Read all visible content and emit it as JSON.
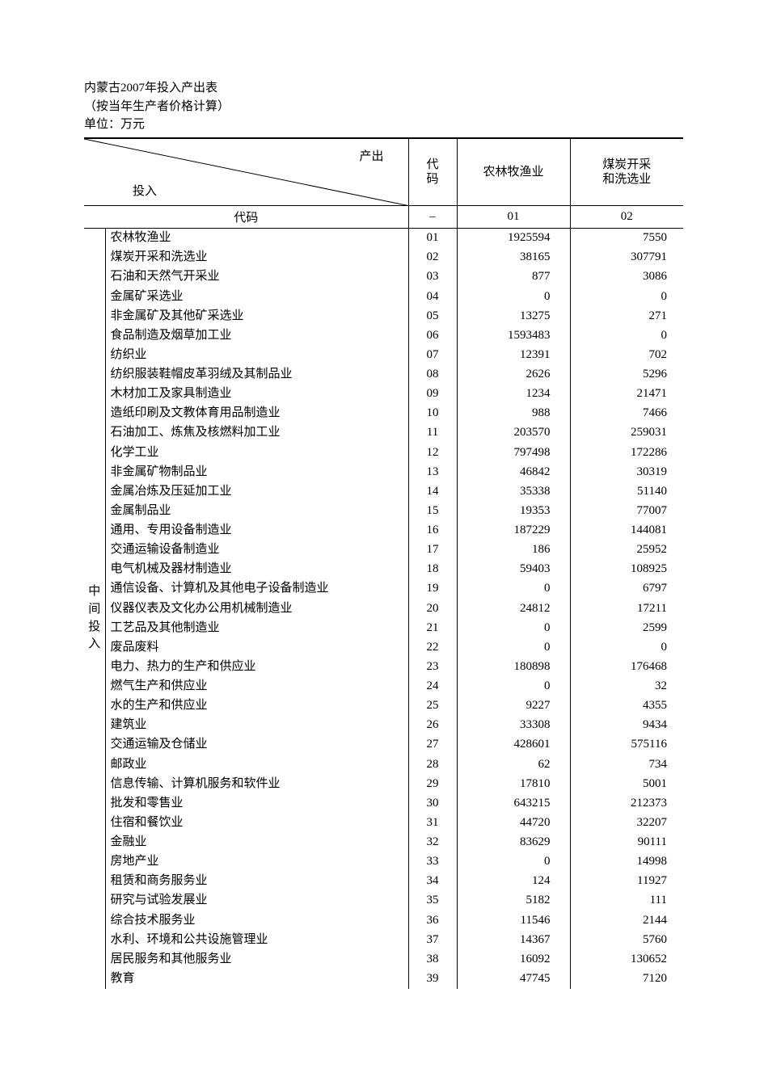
{
  "page": {
    "title": "内蒙古2007年投入产出表",
    "subtitle": "（按当年生产者价格计算）",
    "unit": "单位：万元"
  },
  "header": {
    "output_label": "产出",
    "input_label": "投入",
    "code_label": "代\n码",
    "code_row_label": "代码",
    "columns": [
      {
        "label": "农林牧渔业",
        "code": "01"
      },
      {
        "label": "煤炭开采\n和洗选业",
        "code": "02"
      }
    ]
  },
  "side_label": "中间投入",
  "rows": [
    {
      "name": "农林牧渔业",
      "code": "01",
      "v": [
        1925594,
        7550
      ]
    },
    {
      "name": "煤炭开采和洗选业",
      "code": "02",
      "v": [
        38165,
        307791
      ]
    },
    {
      "name": "石油和天然气开采业",
      "code": "03",
      "v": [
        877,
        3086
      ]
    },
    {
      "name": "金属矿采选业",
      "code": "04",
      "v": [
        0,
        0
      ]
    },
    {
      "name": "非金属矿及其他矿采选业",
      "code": "05",
      "v": [
        13275,
        271
      ]
    },
    {
      "name": "食品制造及烟草加工业",
      "code": "06",
      "v": [
        1593483,
        0
      ]
    },
    {
      "name": "纺织业",
      "code": "07",
      "v": [
        12391,
        702
      ]
    },
    {
      "name": "纺织服装鞋帽皮革羽绒及其制品业",
      "code": "08",
      "v": [
        2626,
        5296
      ]
    },
    {
      "name": "木材加工及家具制造业",
      "code": "09",
      "v": [
        1234,
        21471
      ]
    },
    {
      "name": "造纸印刷及文教体育用品制造业",
      "code": "10",
      "v": [
        988,
        7466
      ]
    },
    {
      "name": "石油加工、炼焦及核燃料加工业",
      "code": "11",
      "v": [
        203570,
        259031
      ]
    },
    {
      "name": "化学工业",
      "code": "12",
      "v": [
        797498,
        172286
      ]
    },
    {
      "name": "非金属矿物制品业",
      "code": "13",
      "v": [
        46842,
        30319
      ]
    },
    {
      "name": "金属冶炼及压延加工业",
      "code": "14",
      "v": [
        35338,
        51140
      ]
    },
    {
      "name": "金属制品业",
      "code": "15",
      "v": [
        19353,
        77007
      ]
    },
    {
      "name": "通用、专用设备制造业",
      "code": "16",
      "v": [
        187229,
        144081
      ]
    },
    {
      "name": "交通运输设备制造业",
      "code": "17",
      "v": [
        186,
        25952
      ]
    },
    {
      "name": "电气机械及器材制造业",
      "code": "18",
      "v": [
        59403,
        108925
      ]
    },
    {
      "name": "通信设备、计算机及其他电子设备制造业",
      "code": "19",
      "v": [
        0,
        6797
      ]
    },
    {
      "name": "仪器仪表及文化办公用机械制造业",
      "code": "20",
      "v": [
        24812,
        17211
      ]
    },
    {
      "name": "工艺品及其他制造业",
      "code": "21",
      "v": [
        0,
        2599
      ]
    },
    {
      "name": "废品废料",
      "code": "22",
      "v": [
        0,
        0
      ]
    },
    {
      "name": "电力、热力的生产和供应业",
      "code": "23",
      "v": [
        180898,
        176468
      ]
    },
    {
      "name": "燃气生产和供应业",
      "code": "24",
      "v": [
        0,
        32
      ]
    },
    {
      "name": "水的生产和供应业",
      "code": "25",
      "v": [
        9227,
        4355
      ]
    },
    {
      "name": "建筑业",
      "code": "26",
      "v": [
        33308,
        9434
      ]
    },
    {
      "name": "交通运输及仓储业",
      "code": "27",
      "v": [
        428601,
        575116
      ]
    },
    {
      "name": "邮政业",
      "code": "28",
      "v": [
        62,
        734
      ]
    },
    {
      "name": "信息传输、计算机服务和软件业",
      "code": "29",
      "v": [
        17810,
        5001
      ]
    },
    {
      "name": "批发和零售业",
      "code": "30",
      "v": [
        643215,
        212373
      ]
    },
    {
      "name": "住宿和餐饮业",
      "code": "31",
      "v": [
        44720,
        32207
      ]
    },
    {
      "name": "金融业",
      "code": "32",
      "v": [
        83629,
        90111
      ]
    },
    {
      "name": "房地产业",
      "code": "33",
      "v": [
        0,
        14998
      ]
    },
    {
      "name": "租赁和商务服务业",
      "code": "34",
      "v": [
        124,
        11927
      ]
    },
    {
      "name": "研究与试验发展业",
      "code": "35",
      "v": [
        5182,
        111
      ]
    },
    {
      "name": "综合技术服务业",
      "code": "36",
      "v": [
        11546,
        2144
      ]
    },
    {
      "name": "水利、环境和公共设施管理业",
      "code": "37",
      "v": [
        14367,
        5760
      ]
    },
    {
      "name": "居民服务和其他服务业",
      "code": "38",
      "v": [
        16092,
        130652
      ]
    },
    {
      "name": "教育",
      "code": "39",
      "v": [
        47745,
        7120
      ]
    }
  ],
  "style": {
    "font_size": 15,
    "text_color": "#000000",
    "background": "#ffffff",
    "border_color": "#000000",
    "col_widths": {
      "side": 26,
      "name": 282,
      "code": 60,
      "val": 140
    }
  }
}
